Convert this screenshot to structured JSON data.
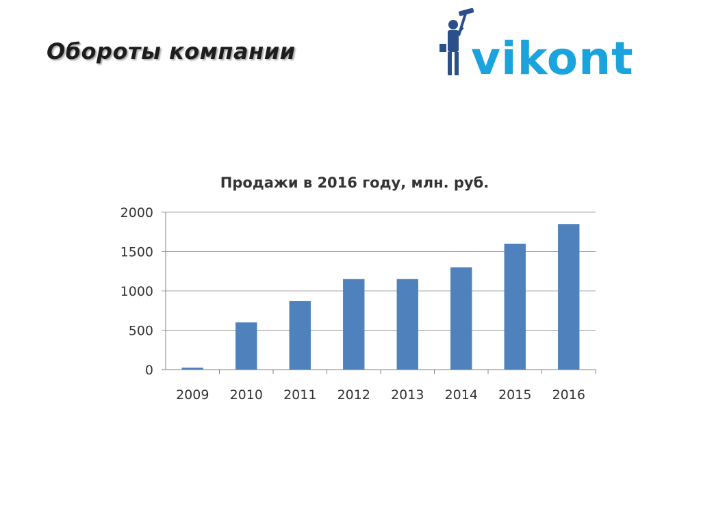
{
  "slide": {
    "title": "Обороты компании"
  },
  "logo": {
    "text": "vikont",
    "icon": "window-washer-figure-icon",
    "color": "#1aa3dc",
    "figure_color": "#2a4f8a"
  },
  "chart_data": {
    "type": "bar",
    "title": "Продажи в 2016 году, млн. руб.",
    "categories": [
      "2009",
      "2010",
      "2011",
      "2012",
      "2013",
      "2014",
      "2015",
      "2016"
    ],
    "values": [
      25,
      600,
      870,
      1150,
      1150,
      1300,
      1600,
      1850
    ],
    "ylim": [
      0,
      2000
    ],
    "yticks": [
      "0",
      "500",
      "1000",
      "1500",
      "2000"
    ],
    "xlabel": "",
    "ylabel": "",
    "grid": true,
    "legend": "none",
    "bar_color": "#4f81bd",
    "grid_color": "#a6a6a6"
  }
}
